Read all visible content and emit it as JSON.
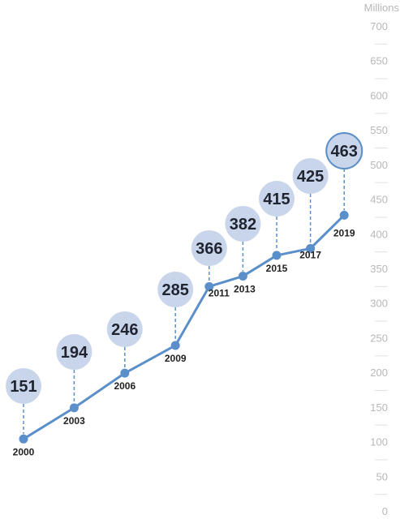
{
  "chart_data": {
    "type": "line",
    "unit_label": "Millions",
    "x": [
      "2000",
      "2003",
      "2006",
      "2009",
      "2011",
      "2013",
      "2015",
      "2017",
      "2019"
    ],
    "values": [
      151,
      194,
      246,
      285,
      366,
      382,
      415,
      425,
      463
    ],
    "point_values": [
      105,
      150,
      200,
      240,
      325,
      340,
      370,
      380,
      428
    ],
    "y_ticks": [
      "0",
      "50",
      "100",
      "150",
      "200",
      "250",
      "300",
      "350",
      "400",
      "450",
      "500",
      "550",
      "600",
      "650",
      "700"
    ],
    "ylim": [
      0,
      700
    ],
    "colors": {
      "line": "#5b8fc9",
      "bubble_fill": "#c9d5ea",
      "bubble_highlight_stroke": "#5b8fc9",
      "tick_text": "#b8b8b8",
      "year_text": "#222222",
      "value_text": "#1f2430"
    }
  }
}
